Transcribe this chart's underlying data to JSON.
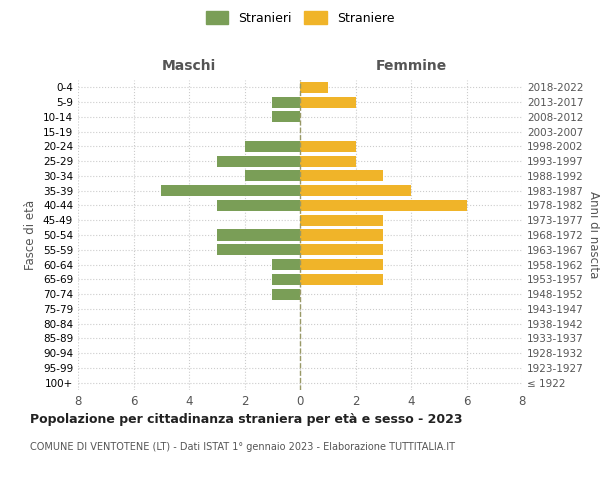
{
  "age_groups": [
    "100+",
    "95-99",
    "90-94",
    "85-89",
    "80-84",
    "75-79",
    "70-74",
    "65-69",
    "60-64",
    "55-59",
    "50-54",
    "45-49",
    "40-44",
    "35-39",
    "30-34",
    "25-29",
    "20-24",
    "15-19",
    "10-14",
    "5-9",
    "0-4"
  ],
  "birth_years": [
    "≤ 1922",
    "1923-1927",
    "1928-1932",
    "1933-1937",
    "1938-1942",
    "1943-1947",
    "1948-1952",
    "1953-1957",
    "1958-1962",
    "1963-1967",
    "1968-1972",
    "1973-1977",
    "1978-1982",
    "1983-1987",
    "1988-1992",
    "1993-1997",
    "1998-2002",
    "2003-2007",
    "2008-2012",
    "2013-2017",
    "2018-2022"
  ],
  "maschi": [
    0,
    0,
    0,
    0,
    0,
    0,
    1,
    1,
    1,
    3,
    3,
    0,
    3,
    5,
    2,
    3,
    2,
    0,
    1,
    1,
    0
  ],
  "femmine": [
    0,
    0,
    0,
    0,
    0,
    0,
    0,
    3,
    3,
    3,
    3,
    3,
    6,
    4,
    3,
    2,
    2,
    0,
    0,
    2,
    1
  ],
  "maschi_color": "#7a9e57",
  "femmine_color": "#f0b429",
  "title": "Popolazione per cittadinanza straniera per età e sesso - 2023",
  "subtitle": "COMUNE DI VENTOTENE (LT) - Dati ISTAT 1° gennaio 2023 - Elaborazione TUTTITALIA.IT",
  "xlabel_left": "Maschi",
  "xlabel_right": "Femmine",
  "ylabel_left": "Fasce di età",
  "ylabel_right": "Anni di nascita",
  "legend_maschi": "Stranieri",
  "legend_femmine": "Straniere",
  "xlim": 8,
  "background_color": "#ffffff",
  "grid_color": "#cccccc"
}
